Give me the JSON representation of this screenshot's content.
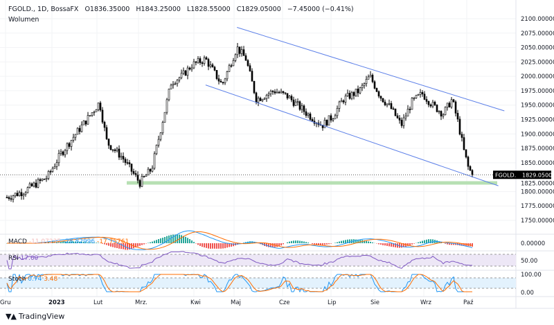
{
  "header": {
    "symbol": "FGOLD., 1D, BossaFX",
    "open": "O1836.35000",
    "high": "H1843.25000",
    "low": "L1828.55000",
    "close": "C1829.05000",
    "change": "−7.45000 (−0.41%)",
    "volume_label": "Wolumen"
  },
  "price_tag": {
    "symbol": "FGOLD.",
    "value": "1829.05000"
  },
  "indicators": {
    "macd": {
      "label": "MACD",
      "hist": "-11.07235",
      "macd": "-28.82996",
      "signal": "-17.75761",
      "axis": "0.00000"
    },
    "rsi": {
      "label": "RSI",
      "value": "17.60",
      "axis": "50.00"
    },
    "stoch": {
      "label": "Stoch",
      "k": "0.74",
      "d": "3.48",
      "axis_top": "100.00",
      "axis_bottom": "0.00"
    }
  },
  "branding": {
    "name": "TradingView"
  },
  "chart_data": {
    "type": "candlestick",
    "y_ticks": [
      "2100.00000",
      "2075.00000",
      "2050.00000",
      "2025.00000",
      "2000.00000",
      "1975.00000",
      "1950.00000",
      "1925.00000",
      "1900.00000",
      "1875.00000",
      "1850.00000",
      "1825.00000",
      "1800.00000",
      "1775.00000",
      "1750.00000"
    ],
    "ylim": [
      1740,
      2110
    ],
    "x_ticks": [
      "Gru",
      "2023",
      "Lut",
      "Mrz.",
      "Kwi",
      "Maj",
      "Cze",
      "Lip",
      "Sie",
      "Wrz",
      "Paź"
    ],
    "approx_close_path": [
      [
        "2022-12-01",
        1790
      ],
      [
        "2022-12-12",
        1800
      ],
      [
        "2022-12-28",
        1825
      ],
      [
        "2023-01-06",
        1865
      ],
      [
        "2023-01-16",
        1900
      ],
      [
        "2023-01-25",
        1930
      ],
      [
        "2023-02-01",
        1955
      ],
      [
        "2023-02-06",
        1885
      ],
      [
        "2023-02-16",
        1860
      ],
      [
        "2023-02-28",
        1815
      ],
      [
        "2023-03-08",
        1840
      ],
      [
        "2023-03-15",
        1920
      ],
      [
        "2023-03-21",
        1990
      ],
      [
        "2023-03-28",
        2000
      ],
      [
        "2023-04-04",
        2020
      ],
      [
        "2023-04-13",
        2030
      ],
      [
        "2023-04-24",
        1985
      ],
      [
        "2023-05-04",
        2050
      ],
      [
        "2023-05-10",
        2030
      ],
      [
        "2023-05-17",
        1960
      ],
      [
        "2023-05-29",
        1975
      ],
      [
        "2023-06-07",
        1965
      ],
      [
        "2023-06-20",
        1935
      ],
      [
        "2023-06-30",
        1915
      ],
      [
        "2023-07-07",
        1930
      ],
      [
        "2023-07-14",
        1960
      ],
      [
        "2023-07-25",
        1975
      ],
      [
        "2023-08-01",
        2000
      ],
      [
        "2023-08-08",
        1965
      ],
      [
        "2023-08-15",
        1945
      ],
      [
        "2023-08-22",
        1915
      ],
      [
        "2023-08-29",
        1955
      ],
      [
        "2023-09-05",
        1970
      ],
      [
        "2023-09-12",
        1950
      ],
      [
        "2023-09-19",
        1935
      ],
      [
        "2023-09-25",
        1960
      ],
      [
        "2023-09-29",
        1920
      ],
      [
        "2023-10-03",
        1870
      ],
      [
        "2023-10-06",
        1840
      ],
      [
        "2023-10-09",
        1829
      ]
    ],
    "last_close": 1829.05,
    "channel": {
      "upper": [
        [
          "2023-05-04",
          2085
        ],
        [
          "2023-10-30",
          1940
        ]
      ],
      "lower": [
        [
          "2023-04-13",
          1985
        ],
        [
          "2023-10-26",
          1810
        ]
      ]
    },
    "support_zone": [
      1812,
      1818
    ],
    "colors": {
      "up": "#ffffff",
      "down": "#000000",
      "channel": "#5b7fe8",
      "zone": "#b7e0b3",
      "macd": "#2196f3",
      "signal": "#ff6d00",
      "rsi": "#7e57c2",
      "stoch_k": "#2196f3",
      "stoch_d": "#ff6d00"
    }
  }
}
